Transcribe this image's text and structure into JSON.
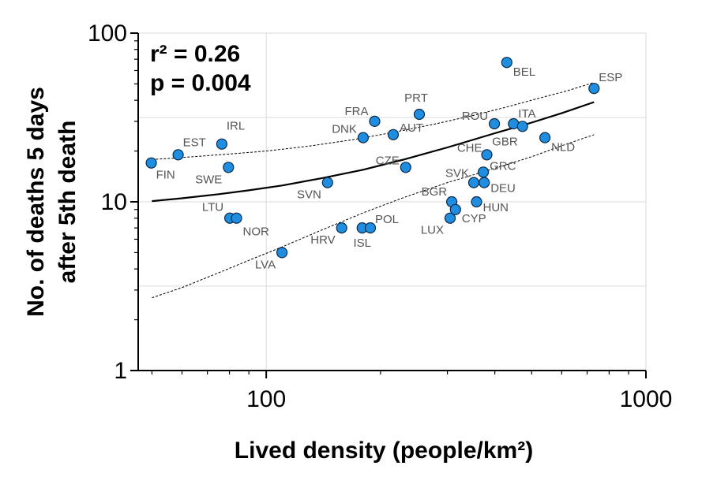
{
  "chart_data": {
    "type": "scatter",
    "title": "",
    "xlabel": "Lived density (people/km²)",
    "ylabel": "No. of deaths 5 days after 5th death",
    "ylabel_lines": [
      "No. of deaths 5 days",
      "after 5th death"
    ],
    "xscale": "log",
    "yscale": "log",
    "xlim": [
      46,
      1000
    ],
    "ylim": [
      1,
      100
    ],
    "xticks": [
      100,
      1000
    ],
    "xtick_labels": [
      "100",
      "1000"
    ],
    "yticks": [
      1,
      10,
      100
    ],
    "ytick_labels": [
      "1",
      "10",
      "100"
    ],
    "grid": true,
    "annotations": {
      "r2_text": "r² = 0.26",
      "p_text": "p = 0.004"
    },
    "colors": {
      "point_fill": "#1f8ee0",
      "point_stroke": "#0a2a4a",
      "fit_line": "#000000",
      "ci_line": "#000000",
      "label_text": "#555555",
      "grid": "#d8d8d8"
    },
    "points": [
      {
        "label": "FIN",
        "x": 49.8,
        "y": 17
      },
      {
        "label": "EST",
        "x": 58.6,
        "y": 19
      },
      {
        "label": "IRL",
        "x": 76.4,
        "y": 22
      },
      {
        "label": "SWE",
        "x": 79.5,
        "y": 16
      },
      {
        "label": "LTU",
        "x": 80.2,
        "y": 8
      },
      {
        "label": "NOR",
        "x": 83.5,
        "y": 8
      },
      {
        "label": "LVA",
        "x": 110,
        "y": 5
      },
      {
        "label": "SVN",
        "x": 145,
        "y": 13
      },
      {
        "label": "HRV",
        "x": 158,
        "y": 7
      },
      {
        "label": "ISL",
        "x": 179,
        "y": 7
      },
      {
        "label": "POL",
        "x": 188,
        "y": 7
      },
      {
        "label": "DNK",
        "x": 180,
        "y": 24
      },
      {
        "label": "FRA",
        "x": 193,
        "y": 30
      },
      {
        "label": "AUT",
        "x": 216,
        "y": 25
      },
      {
        "label": "CZE",
        "x": 233,
        "y": 16
      },
      {
        "label": "PRT",
        "x": 253,
        "y": 33
      },
      {
        "label": "BGR",
        "x": 308,
        "y": 10
      },
      {
        "label": "LUX",
        "x": 305,
        "y": 8
      },
      {
        "label": "CYP",
        "x": 315,
        "y": 9
      },
      {
        "label": "HUN",
        "x": 358,
        "y": 10
      },
      {
        "label": "SVK",
        "x": 352,
        "y": 13
      },
      {
        "label": "DEU",
        "x": 375,
        "y": 13
      },
      {
        "label": "GRC",
        "x": 373,
        "y": 15
      },
      {
        "label": "CHE",
        "x": 381,
        "y": 19
      },
      {
        "label": "ROU",
        "x": 399,
        "y": 29
      },
      {
        "label": "BEL",
        "x": 430,
        "y": 67
      },
      {
        "label": "ITA",
        "x": 448,
        "y": 29
      },
      {
        "label": "GBR",
        "x": 473,
        "y": 28
      },
      {
        "label": "NLD",
        "x": 542,
        "y": 24
      },
      {
        "label": "ESP",
        "x": 730,
        "y": 47
      }
    ],
    "fit": {
      "name": "regression fit",
      "x": [
        50,
        60,
        75,
        90,
        110,
        140,
        180,
        230,
        300,
        400,
        500,
        600,
        730
      ],
      "y": [
        10.1,
        10.5,
        11.1,
        11.7,
        12.5,
        13.8,
        15.5,
        17.8,
        21.0,
        25.5,
        29.5,
        33.5,
        39.0
      ]
    },
    "ci_upper": {
      "name": "upper 95% band",
      "x": [
        50,
        60,
        80,
        100,
        130,
        170,
        220,
        280,
        350,
        430,
        520,
        620,
        730
      ],
      "y": [
        17.8,
        18.3,
        19.2,
        20.0,
        21.4,
        23.4,
        26.0,
        29.0,
        32.5,
        36.5,
        41.0,
        45.5,
        51.0
      ]
    },
    "ci_lower": {
      "name": "lower 95% band",
      "x": [
        50,
        60,
        75,
        90,
        110,
        140,
        180,
        230,
        300,
        400,
        500,
        600,
        730
      ],
      "y": [
        2.7,
        3.1,
        3.8,
        4.5,
        5.4,
        6.8,
        8.6,
        10.6,
        13.0,
        15.8,
        18.5,
        21.5,
        25.0
      ]
    }
  }
}
